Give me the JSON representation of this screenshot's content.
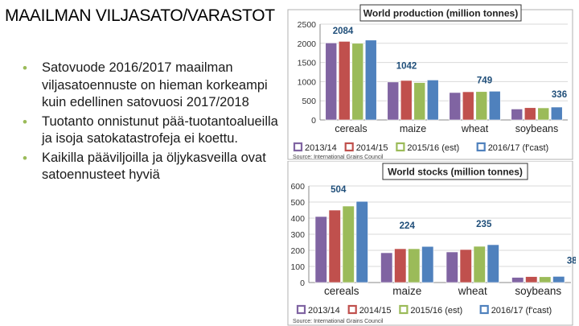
{
  "slide": {
    "title": "MAAILMAN VILJASATO/VARASTOT",
    "bullets": [
      "Satovuode 2016/2017 maailman viljasatoennuste on hieman korkeampi kuin edellinen satovuosi 2017/2018",
      "Tuotanto onnistunut pää-tuotantoalueilla ja isoja satokatastrofeja ei koettu.",
      "Kaikilla pääviljoilla ja öljykasveilla ovat satoennusteet hyviä"
    ]
  },
  "chart_data": [
    {
      "type": "bar",
      "title": "World production (million tonnes)",
      "categories": [
        "cereals",
        "maize",
        "wheat",
        "soybeans"
      ],
      "series": [
        {
          "name": "2013/14",
          "color": "#8064a2",
          "values": [
            2010,
            990,
            715,
            285
          ]
        },
        {
          "name": "2014/15",
          "color": "#c0504d",
          "values": [
            2050,
            1030,
            735,
            320
          ]
        },
        {
          "name": "2015/16 (est)",
          "color": "#9bbb59",
          "values": [
            2000,
            975,
            740,
            315
          ]
        },
        {
          "name": "2016/17 (f'cast)",
          "color": "#4f81bd",
          "values": [
            2084,
            1042,
            749,
            336
          ]
        }
      ],
      "data_labels": [
        "2084",
        "1042",
        "749",
        "336"
      ],
      "yticks": [
        "0",
        "500",
        "1000",
        "1500",
        "2000",
        "2500"
      ],
      "ylim": [
        0,
        2500
      ],
      "grid": true,
      "legend": "bottom",
      "source": "Source: International Grains Council"
    },
    {
      "type": "bar",
      "title": "World stocks (million tonnes)",
      "categories": [
        "cereals",
        "maize",
        "wheat",
        "soybeans"
      ],
      "series": [
        {
          "name": "2013/14",
          "color": "#8064a2",
          "values": [
            410,
            185,
            190,
            32
          ]
        },
        {
          "name": "2014/15",
          "color": "#c0504d",
          "values": [
            450,
            210,
            205,
            37
          ]
        },
        {
          "name": "2015/16 (est)",
          "color": "#9bbb59",
          "values": [
            475,
            210,
            225,
            36
          ]
        },
        {
          "name": "2016/17 (f'cast)",
          "color": "#4f81bd",
          "values": [
            504,
            224,
            235,
            38
          ]
        }
      ],
      "data_labels": [
        "504",
        "224",
        "235",
        "38"
      ],
      "yticks": [
        "0",
        "100",
        "200",
        "300",
        "400",
        "500",
        "600"
      ],
      "ylim": [
        0,
        600
      ],
      "grid": true,
      "legend": "bottom",
      "source": "Source: International Grains Council"
    }
  ]
}
